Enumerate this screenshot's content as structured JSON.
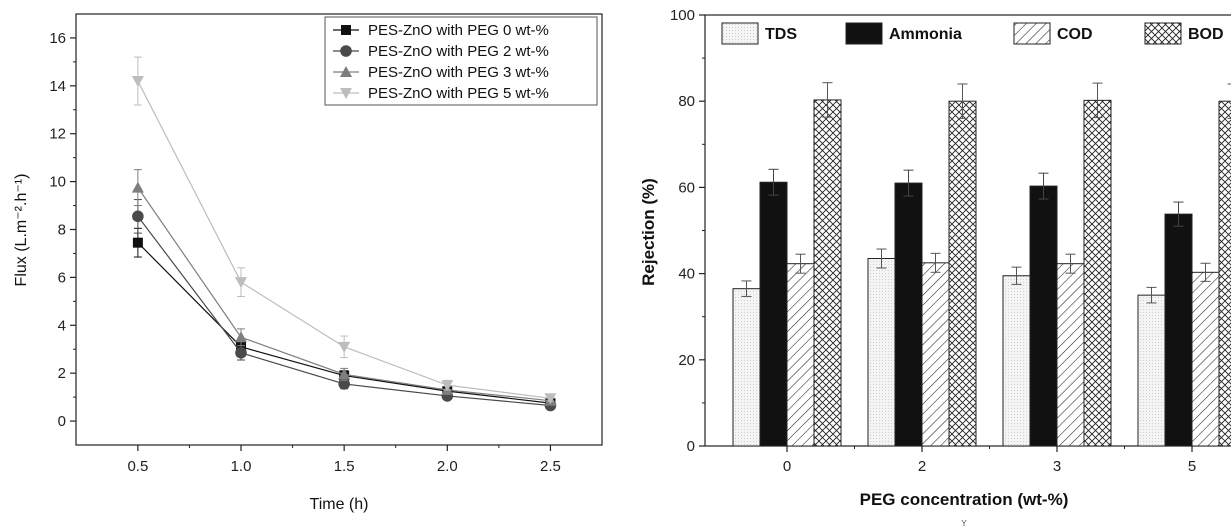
{
  "chart_data": [
    {
      "type": "line",
      "xlabel": "Time (h)",
      "ylabel": "Flux (L.m⁻².h⁻¹)",
      "xlim": [
        0.2,
        2.75
      ],
      "ylim": [
        -1,
        17
      ],
      "x_ticks": [
        "0.5",
        "1.0",
        "1.5",
        "2.0",
        "2.5"
      ],
      "y_ticks": [
        "0",
        "2",
        "4",
        "6",
        "8",
        "10",
        "12",
        "14",
        "16"
      ],
      "x": [
        0.5,
        1.0,
        1.5,
        2.0,
        2.5
      ],
      "legend_position": "top-right",
      "series": [
        {
          "name": "PES-ZnO with PEG 0 wt-%",
          "marker": "square",
          "color": "#111111",
          "values": [
            7.45,
            3.1,
            1.9,
            1.25,
            0.75
          ],
          "errors": [
            0.6,
            0.3,
            0.2,
            0.15,
            0.1
          ]
        },
        {
          "name": "PES-ZnO with PEG 2 wt-%",
          "marker": "circle",
          "color": "#4a4a4a",
          "values": [
            8.55,
            2.85,
            1.55,
            1.05,
            0.65
          ],
          "errors": [
            0.7,
            0.3,
            0.2,
            0.15,
            0.1
          ]
        },
        {
          "name": "PES-ZnO with PEG 3 wt-%",
          "marker": "triangle-up",
          "color": "#7e7e7e",
          "values": [
            9.75,
            3.5,
            1.95,
            1.3,
            0.85
          ],
          "errors": [
            0.75,
            0.35,
            0.25,
            0.15,
            0.1
          ]
        },
        {
          "name": "PES-ZnO with PEG 5 wt-%",
          "marker": "triangle-down",
          "color": "#bdbdbd",
          "values": [
            14.2,
            5.8,
            3.1,
            1.5,
            0.95
          ],
          "errors": [
            1.0,
            0.6,
            0.45,
            0.2,
            0.12
          ]
        }
      ]
    },
    {
      "type": "bar",
      "xlabel": "PEG concentration (wt-%)",
      "ylabel": "Rejection (%)",
      "ylim": [
        0,
        100
      ],
      "y_ticks": [
        "0",
        "20",
        "40",
        "60",
        "80",
        "100"
      ],
      "categories": [
        "0",
        "2",
        "3",
        "5"
      ],
      "legend_position": "top",
      "series": [
        {
          "name": "TDS",
          "pattern": "light",
          "values": [
            36.5,
            43.5,
            39.5,
            35.0
          ],
          "errors": [
            1.8,
            2.2,
            2.0,
            1.8
          ]
        },
        {
          "name": "Ammonia",
          "pattern": "solid",
          "values": [
            61.2,
            61.0,
            60.3,
            53.8
          ],
          "errors": [
            3.0,
            3.0,
            3.0,
            2.8
          ]
        },
        {
          "name": "COD",
          "pattern": "diagonal",
          "values": [
            42.3,
            42.5,
            42.3,
            40.3
          ],
          "errors": [
            2.2,
            2.2,
            2.2,
            2.1
          ]
        },
        {
          "name": "BOD",
          "pattern": "crosshatch",
          "values": [
            80.3,
            80.0,
            80.2,
            80.0
          ],
          "errors": [
            4.0,
            4.0,
            4.0,
            4.0
          ]
        }
      ]
    }
  ],
  "stray_mark": "Y"
}
